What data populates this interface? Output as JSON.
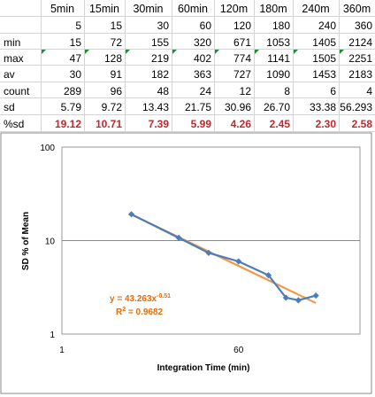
{
  "sheet": {
    "columns": [
      "5min",
      "15min",
      "30min",
      "60min",
      "120m",
      "180m",
      "240m",
      "360m"
    ],
    "rows": [
      {
        "label": "",
        "values": [
          "5",
          "15",
          "30",
          "60",
          "120",
          "180",
          "240",
          "360"
        ],
        "style": "normal"
      },
      {
        "label": "min",
        "values": [
          "15",
          "72",
          "155",
          "320",
          "671",
          "1053",
          "1405",
          "2124"
        ],
        "style": "normal"
      },
      {
        "label": "max",
        "values": [
          "47",
          "128",
          "219",
          "402",
          "774",
          "1141",
          "1505",
          "2251"
        ],
        "style": "normal"
      },
      {
        "label": "av",
        "values": [
          "30",
          "91",
          "182",
          "363",
          "727",
          "1090",
          "1453",
          "2183"
        ],
        "style": "normal",
        "flagged": true
      },
      {
        "label": "count",
        "values": [
          "289",
          "96",
          "48",
          "24",
          "12",
          "8",
          "6",
          "4"
        ],
        "style": "normal"
      },
      {
        "label": "sd",
        "values": [
          "5.79",
          "9.72",
          "13.43",
          "21.75",
          "30.96",
          "26.70",
          "33.38",
          "56.293"
        ],
        "style": "normal"
      },
      {
        "label": "%sd",
        "values": [
          "19.12",
          "10.71",
          "7.39",
          "5.99",
          "4.26",
          "2.45",
          "2.30",
          "2.58"
        ],
        "style": "red"
      }
    ]
  },
  "chart_data": {
    "type": "scatter",
    "xlabel": "Integration Time (min)",
    "ylabel": "SD % of Mean",
    "x_scale": "log",
    "y_scale": "log",
    "xlim": [
      1,
      1000
    ],
    "ylim": [
      1,
      100
    ],
    "x_tick_labels": [
      "1",
      "60"
    ],
    "y_tick_labels": [
      "1",
      "10",
      "100"
    ],
    "grid": "horizontal major",
    "series": [
      {
        "x": [
          5,
          15,
          30,
          60,
          120,
          180,
          240,
          360
        ],
        "y": [
          19.12,
          10.71,
          7.39,
          5.99,
          4.26,
          2.45,
          2.3,
          2.58
        ],
        "color": "#4a7ebb",
        "marker": "diamond"
      }
    ],
    "trendline": {
      "type": "power",
      "a": 43.263,
      "b": -0.51,
      "color": "#f79646",
      "equation_prefix": "y = 43.263x",
      "equation_exp": "-0.51",
      "r2_prefix": "R",
      "r2_exp": "2",
      "r2_suffix": " = 0.9682",
      "label_color": "#e46c0a"
    }
  }
}
